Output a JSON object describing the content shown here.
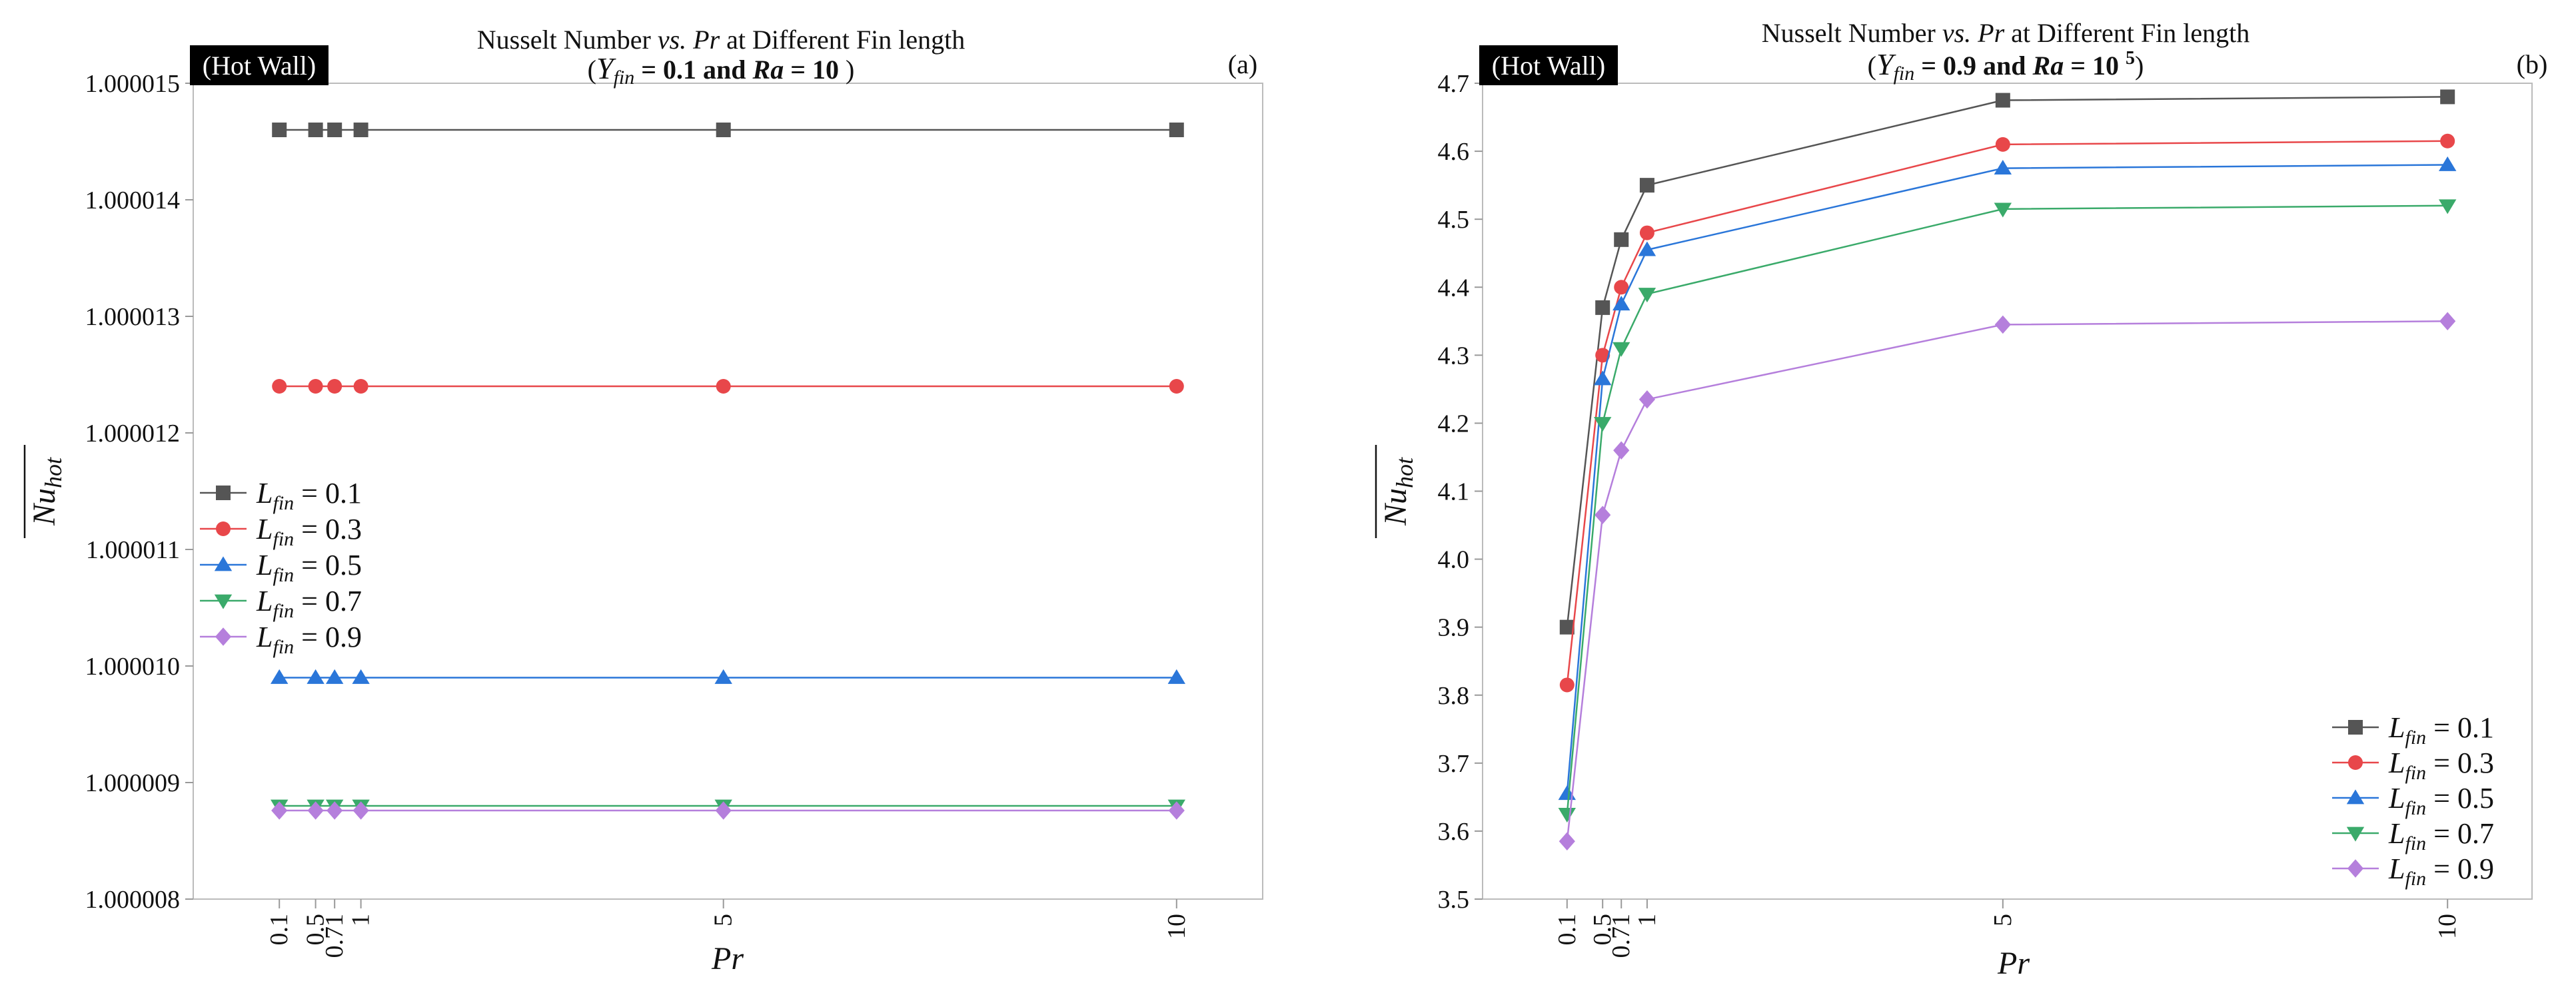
{
  "colors": {
    "s1": "#555555",
    "s2": "#e8474a",
    "s3": "#2a76d9",
    "s4": "#3aaa6a",
    "s5": "#b57fdc",
    "axis": "#bbbbbb",
    "badge": "#000000"
  },
  "chart_data": [
    {
      "type": "line",
      "panel_label": "(a)",
      "badge": "(Hot Wall)",
      "title_line1": "Nusselt Number vs. Pr at Different Fin length",
      "title_line2": "(Y_fin = 0.1 and Ra = 10 )",
      "xlabel": "Pr",
      "ylabel": "Nu_hot",
      "x": [
        0.1,
        0.5,
        0.71,
        1,
        5,
        10
      ],
      "x_tick_labels": [
        "0.1",
        "0.5",
        "0.71",
        "1",
        "5",
        "10"
      ],
      "xlim": [
        -0.85,
        10.95
      ],
      "ylim": [
        1.000008,
        1.000015
      ],
      "y_ticks": [
        1.000008,
        1.000009,
        1.00001,
        1.000011,
        1.000012,
        1.000013,
        1.000014,
        1.000015
      ],
      "y_tick_labels": [
        "1.000008",
        "1.000009",
        "1.000010",
        "1.000011",
        "1.000012",
        "1.000013",
        "1.000014",
        "1.000015"
      ],
      "legend_position": "left-middle",
      "series": [
        {
          "name": "L_fin = 0.1",
          "legend": "L fin = 0.1",
          "marker": "square",
          "color_key": "s1",
          "values": [
            1.0000146,
            1.0000146,
            1.0000146,
            1.0000146,
            1.0000146,
            1.0000146
          ]
        },
        {
          "name": "L_fin = 0.3",
          "legend": "L fin = 0.3",
          "marker": "circle",
          "color_key": "s2",
          "values": [
            1.0000124,
            1.0000124,
            1.0000124,
            1.0000124,
            1.0000124,
            1.0000124
          ]
        },
        {
          "name": "L_fin = 0.5",
          "legend": "L fin = 0.5",
          "marker": "triangle-up",
          "color_key": "s3",
          "values": [
            1.0000099,
            1.0000099,
            1.0000099,
            1.0000099,
            1.0000099,
            1.0000099
          ]
        },
        {
          "name": "L_fin = 0.7",
          "legend": "L fin = 0.7",
          "marker": "triangle-down",
          "color_key": "s4",
          "values": [
            1.0000088,
            1.0000088,
            1.0000088,
            1.0000088,
            1.0000088,
            1.0000088
          ]
        },
        {
          "name": "L_fin = 0.9",
          "legend": "L fin = 0.9",
          "marker": "diamond",
          "color_key": "s5",
          "values": [
            1.00000876,
            1.00000876,
            1.00000876,
            1.00000876,
            1.00000876,
            1.00000876
          ]
        }
      ]
    },
    {
      "type": "line",
      "panel_label": "(b)",
      "badge": "(Hot Wall)",
      "title_line1": "Nusselt Number vs. Pr at Different Fin length",
      "title_line2": "(Y_fin = 0.9 and Ra = 10^5)",
      "xlabel": "Pr",
      "ylabel": "Nu_hot",
      "x": [
        0.1,
        0.5,
        0.71,
        1,
        5,
        10
      ],
      "x_tick_labels": [
        "0.1",
        "0.5",
        "0.71",
        "1",
        "5",
        "10"
      ],
      "xlim": [
        -0.85,
        10.95
      ],
      "ylim": [
        3.5,
        4.7
      ],
      "y_ticks": [
        3.5,
        3.6,
        3.7,
        3.8,
        3.9,
        4.0,
        4.1,
        4.2,
        4.3,
        4.4,
        4.5,
        4.6,
        4.7
      ],
      "y_tick_labels": [
        "3.5",
        "3.6",
        "3.7",
        "3.8",
        "3.9",
        "4.0",
        "4.1",
        "4.2",
        "4.3",
        "4.4",
        "4.5",
        "4.6",
        "4.7"
      ],
      "legend_position": "bottom-right",
      "series": [
        {
          "name": "L_fin = 0.1",
          "legend": "L fin = 0.1",
          "marker": "square",
          "color_key": "s1",
          "values": [
            3.9,
            4.37,
            4.47,
            4.55,
            4.675,
            4.68
          ]
        },
        {
          "name": "L_fin = 0.3",
          "legend": "L fin = 0.3",
          "marker": "circle",
          "color_key": "s2",
          "values": [
            3.815,
            4.3,
            4.4,
            4.48,
            4.61,
            4.615
          ]
        },
        {
          "name": "L_fin = 0.5",
          "legend": "L fin = 0.5",
          "marker": "triangle-up",
          "color_key": "s3",
          "values": [
            3.655,
            4.265,
            4.375,
            4.455,
            4.575,
            4.58
          ]
        },
        {
          "name": "L_fin = 0.7",
          "legend": "L fin = 0.7",
          "marker": "triangle-down",
          "color_key": "s4",
          "values": [
            3.625,
            4.2,
            4.31,
            4.39,
            4.515,
            4.52
          ]
        },
        {
          "name": "L_fin = 0.9",
          "legend": "L fin = 0.9",
          "marker": "diamond",
          "color_key": "s5",
          "values": [
            3.585,
            4.065,
            4.16,
            4.235,
            4.345,
            4.35
          ]
        }
      ]
    }
  ]
}
